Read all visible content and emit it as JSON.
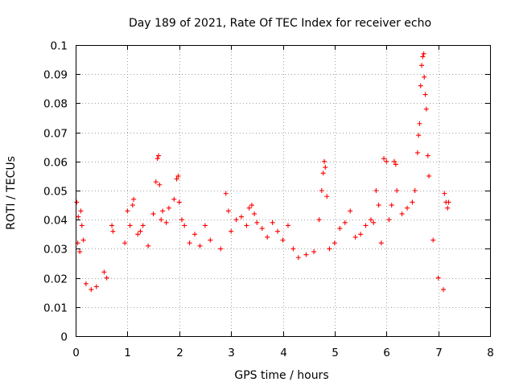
{
  "chart_data": {
    "type": "scatter",
    "title": "Day 189 of 2021, Rate Of TEC Index for receiver echo",
    "xlabel": "GPS time / hours",
    "ylabel": "ROTI / TECUs",
    "xlim": [
      0,
      8
    ],
    "ylim": [
      0,
      0.1
    ],
    "xticks": [
      "0",
      "1",
      "2",
      "3",
      "4",
      "5",
      "6",
      "7",
      "8"
    ],
    "yticks": [
      "0",
      "0.01",
      "0.02",
      "0.03",
      "0.04",
      "0.05",
      "0.06",
      "0.07",
      "0.08",
      "0.09",
      "0.1"
    ],
    "grid": true,
    "marker": "+",
    "series": [
      {
        "name": "ROTI",
        "color": "#ff0000",
        "points": [
          [
            0.02,
            0.046
          ],
          [
            0.05,
            0.041
          ],
          [
            0.1,
            0.043
          ],
          [
            0.12,
            0.038
          ],
          [
            0.04,
            0.032
          ],
          [
            0.08,
            0.029
          ],
          [
            0.15,
            0.033
          ],
          [
            0.2,
            0.018
          ],
          [
            0.3,
            0.016
          ],
          [
            0.4,
            0.017
          ],
          [
            0.55,
            0.022
          ],
          [
            0.6,
            0.02
          ],
          [
            0.7,
            0.038
          ],
          [
            0.72,
            0.036
          ],
          [
            0.95,
            0.032
          ],
          [
            1.0,
            0.043
          ],
          [
            1.05,
            0.038
          ],
          [
            1.1,
            0.045
          ],
          [
            1.12,
            0.047
          ],
          [
            1.2,
            0.035
          ],
          [
            1.25,
            0.036
          ],
          [
            1.3,
            0.038
          ],
          [
            1.4,
            0.031
          ],
          [
            1.5,
            0.042
          ],
          [
            1.55,
            0.053
          ],
          [
            1.58,
            0.061
          ],
          [
            1.6,
            0.062
          ],
          [
            1.62,
            0.052
          ],
          [
            1.65,
            0.04
          ],
          [
            1.68,
            0.043
          ],
          [
            1.75,
            0.039
          ],
          [
            1.8,
            0.044
          ],
          [
            1.9,
            0.047
          ],
          [
            1.95,
            0.054
          ],
          [
            1.98,
            0.055
          ],
          [
            2.0,
            0.046
          ],
          [
            2.05,
            0.04
          ],
          [
            2.1,
            0.038
          ],
          [
            2.2,
            0.032
          ],
          [
            2.3,
            0.035
          ],
          [
            2.4,
            0.031
          ],
          [
            2.5,
            0.038
          ],
          [
            2.6,
            0.033
          ],
          [
            2.8,
            0.03
          ],
          [
            2.9,
            0.049
          ],
          [
            2.95,
            0.043
          ],
          [
            3.0,
            0.036
          ],
          [
            3.1,
            0.04
          ],
          [
            3.2,
            0.041
          ],
          [
            3.3,
            0.038
          ],
          [
            3.35,
            0.044
          ],
          [
            3.4,
            0.045
          ],
          [
            3.45,
            0.042
          ],
          [
            3.5,
            0.039
          ],
          [
            3.6,
            0.037
          ],
          [
            3.7,
            0.034
          ],
          [
            3.8,
            0.039
          ],
          [
            3.9,
            0.036
          ],
          [
            4.0,
            0.033
          ],
          [
            4.1,
            0.038
          ],
          [
            4.2,
            0.03
          ],
          [
            4.3,
            0.027
          ],
          [
            4.45,
            0.028
          ],
          [
            4.6,
            0.029
          ],
          [
            4.7,
            0.04
          ],
          [
            4.75,
            0.05
          ],
          [
            4.78,
            0.056
          ],
          [
            4.8,
            0.06
          ],
          [
            4.82,
            0.058
          ],
          [
            4.85,
            0.048
          ],
          [
            4.9,
            0.03
          ],
          [
            5.0,
            0.032
          ],
          [
            5.1,
            0.037
          ],
          [
            5.2,
            0.039
          ],
          [
            5.3,
            0.043
          ],
          [
            5.4,
            0.034
          ],
          [
            5.5,
            0.035
          ],
          [
            5.6,
            0.038
          ],
          [
            5.7,
            0.04
          ],
          [
            5.75,
            0.039
          ],
          [
            5.8,
            0.05
          ],
          [
            5.85,
            0.045
          ],
          [
            5.9,
            0.032
          ],
          [
            5.95,
            0.061
          ],
          [
            6.0,
            0.06
          ],
          [
            6.05,
            0.04
          ],
          [
            6.1,
            0.045
          ],
          [
            6.15,
            0.06
          ],
          [
            6.18,
            0.059
          ],
          [
            6.2,
            0.05
          ],
          [
            6.3,
            0.042
          ],
          [
            6.4,
            0.044
          ],
          [
            6.5,
            0.046
          ],
          [
            6.55,
            0.05
          ],
          [
            6.6,
            0.063
          ],
          [
            6.62,
            0.069
          ],
          [
            6.64,
            0.073
          ],
          [
            6.66,
            0.086
          ],
          [
            6.68,
            0.093
          ],
          [
            6.7,
            0.096
          ],
          [
            6.72,
            0.097
          ],
          [
            6.73,
            0.089
          ],
          [
            6.75,
            0.083
          ],
          [
            6.77,
            0.078
          ],
          [
            6.8,
            0.062
          ],
          [
            6.82,
            0.055
          ],
          [
            6.9,
            0.033
          ],
          [
            7.0,
            0.02
          ],
          [
            7.1,
            0.016
          ],
          [
            7.12,
            0.049
          ],
          [
            7.15,
            0.046
          ],
          [
            7.18,
            0.044
          ],
          [
            7.2,
            0.046
          ]
        ]
      }
    ]
  }
}
